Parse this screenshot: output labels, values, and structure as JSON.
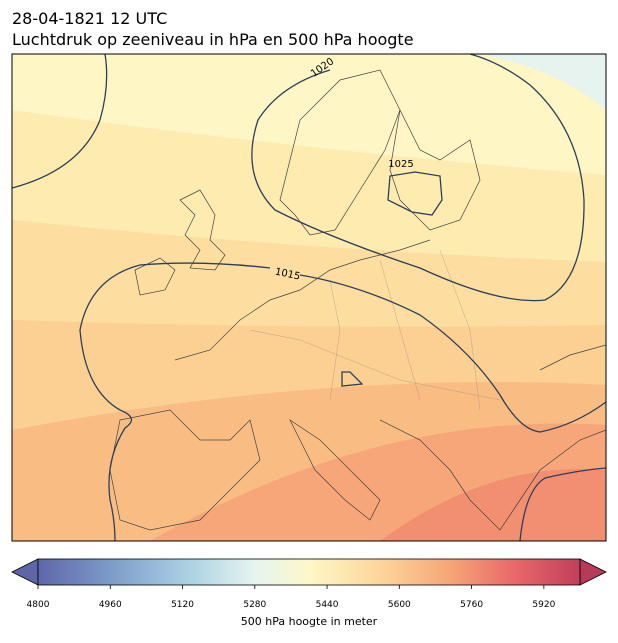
{
  "header": {
    "title": "28-04-1821 12 UTC",
    "subtitle": "Luchtdruk op zeeniveau in hPa en 500 hPa hoogte"
  },
  "map": {
    "contour_labels": [
      "1020",
      "1025",
      "1015"
    ]
  },
  "colorbar": {
    "label": "500 hPa hoogte in meter",
    "lim": [
      4800,
      6000
    ],
    "ticks": [
      4800,
      4960,
      5120,
      5280,
      5440,
      5600,
      5760,
      5920
    ]
  }
}
